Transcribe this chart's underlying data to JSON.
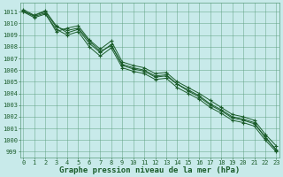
{
  "background_color": "#c8eaea",
  "grid_color": "#5a9c7c",
  "line_color": "#1a5c2a",
  "marker_color": "#1a5c2a",
  "xlabel": "Graphe pression niveau de la mer (hPa)",
  "xlabel_fontsize": 6.5,
  "xlim": [
    -0.3,
    23.3
  ],
  "ylim": [
    998.5,
    1011.8
  ],
  "yticks": [
    999,
    1000,
    1001,
    1002,
    1003,
    1004,
    1005,
    1006,
    1007,
    1008,
    1009,
    1010,
    1011
  ],
  "xticks": [
    0,
    1,
    2,
    3,
    4,
    5,
    6,
    7,
    8,
    9,
    10,
    11,
    12,
    13,
    14,
    15,
    16,
    17,
    18,
    19,
    20,
    21,
    22,
    23
  ],
  "series": [
    [
      1011.2,
      1010.7,
      1011.1,
      1009.8,
      1009.2,
      1009.5,
      1008.3,
      1007.5,
      1008.2,
      1006.4,
      1006.1,
      1005.9,
      1005.4,
      1005.5,
      1004.8,
      1004.3,
      1003.8,
      1003.1,
      1002.6,
      1002.0,
      1001.8,
      1001.5,
      1000.2,
      999.2
    ],
    [
      1011.0,
      1010.5,
      1010.8,
      1009.5,
      1009.0,
      1009.3,
      1008.0,
      1007.2,
      1007.9,
      1006.2,
      1005.9,
      1005.7,
      1005.2,
      1005.3,
      1004.5,
      1004.0,
      1003.5,
      1002.8,
      1002.3,
      1001.7,
      1001.5,
      1001.2,
      1000.0,
      999.0
    ],
    [
      1011.1,
      1010.6,
      1010.9,
      1009.3,
      1009.6,
      1009.8,
      1008.6,
      1007.8,
      1008.5,
      1006.7,
      1006.4,
      1006.2,
      1005.7,
      1005.8,
      1005.0,
      1004.5,
      1004.0,
      1003.4,
      1002.8,
      1002.2,
      1002.0,
      1001.7,
      1000.5,
      999.5
    ],
    [
      1011.0,
      1010.7,
      1011.0,
      1009.7,
      1009.4,
      1009.6,
      1008.5,
      1007.6,
      1008.1,
      1006.5,
      1006.2,
      1006.0,
      1005.5,
      1005.6,
      1004.8,
      1004.2,
      1003.7,
      1003.0,
      1002.5,
      1001.9,
      1001.7,
      1001.4,
      1000.3,
      999.1
    ]
  ],
  "tick_fontsize": 5.0,
  "marker_size": 3.0,
  "line_width": 0.7
}
